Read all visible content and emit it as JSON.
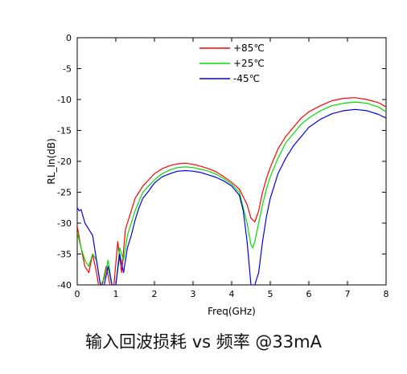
{
  "caption": "输入回波损耗 vs 频率 @33mA",
  "chart_data": {
    "type": "line",
    "title": "",
    "xlabel": "Freq(GHz)",
    "ylabel": "RL_In(dB)",
    "xlim": [
      0,
      8
    ],
    "ylim": [
      -40,
      0
    ],
    "xticks": [
      0,
      1,
      2,
      3,
      4,
      5,
      6,
      7,
      8
    ],
    "yticks": [
      0,
      -5,
      -10,
      -15,
      -20,
      -25,
      -30,
      -35,
      -40
    ],
    "grid": false,
    "legend_position": "top-center",
    "series": [
      {
        "name": "+85℃",
        "color": "#ff0000",
        "points": [
          [
            0,
            -30.5
          ],
          [
            0.1,
            -34
          ],
          [
            0.2,
            -37
          ],
          [
            0.3,
            -38
          ],
          [
            0.4,
            -35
          ],
          [
            0.5,
            -38
          ],
          [
            0.55,
            -40
          ],
          [
            0.65,
            -40
          ],
          [
            0.75,
            -37
          ],
          [
            0.85,
            -40
          ],
          [
            0.95,
            -40
          ],
          [
            1.05,
            -33
          ],
          [
            1.15,
            -38
          ],
          [
            1.25,
            -31
          ],
          [
            1.35,
            -29
          ],
          [
            1.45,
            -27
          ],
          [
            1.5,
            -26
          ],
          [
            1.6,
            -25
          ],
          [
            1.7,
            -24
          ],
          [
            1.85,
            -23
          ],
          [
            2.0,
            -22
          ],
          [
            2.2,
            -21.2
          ],
          [
            2.4,
            -20.7
          ],
          [
            2.6,
            -20.4
          ],
          [
            2.8,
            -20.3
          ],
          [
            3.0,
            -20.5
          ],
          [
            3.2,
            -20.8
          ],
          [
            3.4,
            -21.2
          ],
          [
            3.6,
            -21.7
          ],
          [
            3.8,
            -22.5
          ],
          [
            4.0,
            -23.4
          ],
          [
            4.2,
            -24.5
          ],
          [
            4.4,
            -27
          ],
          [
            4.5,
            -29.2
          ],
          [
            4.6,
            -29.8
          ],
          [
            4.7,
            -28
          ],
          [
            4.8,
            -25
          ],
          [
            4.9,
            -22.8
          ],
          [
            5.0,
            -21
          ],
          [
            5.2,
            -18
          ],
          [
            5.4,
            -16
          ],
          [
            5.6,
            -14.5
          ],
          [
            5.8,
            -13
          ],
          [
            6.0,
            -12
          ],
          [
            6.3,
            -11
          ],
          [
            6.6,
            -10.2
          ],
          [
            6.9,
            -9.8
          ],
          [
            7.2,
            -9.7
          ],
          [
            7.5,
            -10
          ],
          [
            7.8,
            -10.5
          ],
          [
            8.0,
            -11.2
          ]
        ]
      },
      {
        "name": "+25℃",
        "color": "#00dd00",
        "points": [
          [
            0,
            -31.5
          ],
          [
            0.1,
            -34
          ],
          [
            0.2,
            -36
          ],
          [
            0.3,
            -37
          ],
          [
            0.4,
            -35
          ],
          [
            0.5,
            -36
          ],
          [
            0.6,
            -40
          ],
          [
            0.7,
            -39
          ],
          [
            0.8,
            -36
          ],
          [
            0.9,
            -40
          ],
          [
            1.0,
            -40
          ],
          [
            1.1,
            -34
          ],
          [
            1.2,
            -36
          ],
          [
            1.3,
            -32
          ],
          [
            1.4,
            -30
          ],
          [
            1.5,
            -28
          ],
          [
            1.6,
            -26.5
          ],
          [
            1.7,
            -25
          ],
          [
            1.85,
            -24
          ],
          [
            2.0,
            -23
          ],
          [
            2.2,
            -22
          ],
          [
            2.4,
            -21.4
          ],
          [
            2.6,
            -21
          ],
          [
            2.8,
            -20.9
          ],
          [
            3.0,
            -21
          ],
          [
            3.2,
            -21.3
          ],
          [
            3.4,
            -21.6
          ],
          [
            3.6,
            -22.1
          ],
          [
            3.8,
            -22.8
          ],
          [
            4.0,
            -23.7
          ],
          [
            4.2,
            -25
          ],
          [
            4.3,
            -27.5
          ],
          [
            4.4,
            -30
          ],
          [
            4.5,
            -33.5
          ],
          [
            4.55,
            -34
          ],
          [
            4.6,
            -33
          ],
          [
            4.7,
            -30
          ],
          [
            4.8,
            -27
          ],
          [
            4.9,
            -24.5
          ],
          [
            5.0,
            -22.5
          ],
          [
            5.2,
            -19.5
          ],
          [
            5.4,
            -17
          ],
          [
            5.6,
            -15.5
          ],
          [
            5.8,
            -14
          ],
          [
            6.0,
            -13
          ],
          [
            6.3,
            -11.8
          ],
          [
            6.6,
            -11
          ],
          [
            6.9,
            -10.6
          ],
          [
            7.2,
            -10.4
          ],
          [
            7.5,
            -10.6
          ],
          [
            7.8,
            -11.2
          ],
          [
            8.0,
            -12
          ]
        ]
      },
      {
        "name": "-45℃",
        "color": "#0000ee",
        "points": [
          [
            0,
            -27.5
          ],
          [
            0.05,
            -28
          ],
          [
            0.1,
            -27.8
          ],
          [
            0.2,
            -30
          ],
          [
            0.3,
            -31
          ],
          [
            0.4,
            -32
          ],
          [
            0.5,
            -36
          ],
          [
            0.6,
            -40
          ],
          [
            0.7,
            -40
          ],
          [
            0.8,
            -37
          ],
          [
            0.9,
            -40
          ],
          [
            1.0,
            -40
          ],
          [
            1.1,
            -35
          ],
          [
            1.2,
            -38
          ],
          [
            1.3,
            -34
          ],
          [
            1.4,
            -32
          ],
          [
            1.5,
            -29.5
          ],
          [
            1.6,
            -27.5
          ],
          [
            1.7,
            -26
          ],
          [
            1.85,
            -24.8
          ],
          [
            2.0,
            -23.5
          ],
          [
            2.2,
            -22.5
          ],
          [
            2.4,
            -22
          ],
          [
            2.6,
            -21.6
          ],
          [
            2.8,
            -21.5
          ],
          [
            3.0,
            -21.6
          ],
          [
            3.2,
            -21.8
          ],
          [
            3.4,
            -22.2
          ],
          [
            3.6,
            -22.6
          ],
          [
            3.8,
            -23.2
          ],
          [
            4.0,
            -24
          ],
          [
            4.2,
            -25.5
          ],
          [
            4.3,
            -28
          ],
          [
            4.4,
            -33
          ],
          [
            4.5,
            -40
          ],
          [
            4.6,
            -40
          ],
          [
            4.7,
            -38
          ],
          [
            4.8,
            -33
          ],
          [
            4.9,
            -29
          ],
          [
            5.0,
            -26
          ],
          [
            5.2,
            -22
          ],
          [
            5.4,
            -19.5
          ],
          [
            5.6,
            -17.5
          ],
          [
            5.8,
            -16
          ],
          [
            6.0,
            -14.5
          ],
          [
            6.3,
            -13.2
          ],
          [
            6.6,
            -12.3
          ],
          [
            6.9,
            -11.8
          ],
          [
            7.2,
            -11.6
          ],
          [
            7.5,
            -11.8
          ],
          [
            7.8,
            -12.4
          ],
          [
            8.0,
            -13
          ]
        ]
      }
    ]
  }
}
